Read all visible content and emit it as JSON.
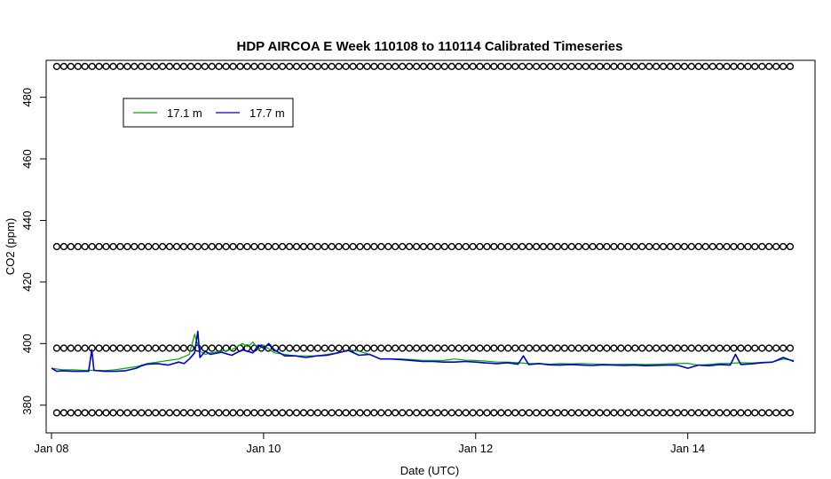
{
  "chart_data": {
    "type": "line",
    "title": "HDP AIRCOA E  Week 110108 to 110114  Calibrated Timeseries",
    "xlabel": "Date (UTC)",
    "ylabel": "CO2 (ppm)",
    "xlim": [
      -0.05,
      7.2
    ],
    "ylim": [
      371,
      492
    ],
    "x_ticks": [
      {
        "value": 0,
        "label": "Jan 08"
      },
      {
        "value": 2,
        "label": "Jan 10"
      },
      {
        "value": 4,
        "label": "Jan 12"
      },
      {
        "value": 6,
        "label": "Jan 14"
      }
    ],
    "y_ticks": [
      380,
      400,
      420,
      440,
      460,
      480
    ],
    "legend": {
      "placement": "top-left",
      "entries": [
        {
          "label": "17.1 m",
          "color": "#00aa00"
        },
        {
          "label": "17.7 m",
          "color": "#0000cc"
        }
      ]
    },
    "calibration_levels": [
      377.5,
      398.5,
      431.5,
      490
    ],
    "calibration_x_range": [
      0.05,
      7.0
    ],
    "series": [
      {
        "name": "17.1 m",
        "color": "#00aa00",
        "x": [
          0.0,
          0.1,
          0.2,
          0.3,
          0.4,
          0.5,
          0.6,
          0.7,
          0.8,
          0.9,
          1.0,
          1.1,
          1.2,
          1.3,
          1.35,
          1.4,
          1.45,
          1.5,
          1.6,
          1.7,
          1.8,
          1.85,
          1.9,
          1.95,
          2.0,
          2.1,
          2.2,
          2.3,
          2.4,
          2.5,
          2.6,
          2.7,
          2.8,
          2.9,
          3.0,
          3.1,
          3.2,
          3.3,
          3.4,
          3.5,
          3.6,
          3.7,
          3.8,
          3.9,
          4.0,
          4.1,
          4.2,
          4.3,
          4.4,
          4.5,
          4.6,
          4.7,
          4.8,
          4.9,
          5.0,
          5.1,
          5.2,
          5.3,
          5.4,
          5.5,
          5.6,
          5.7,
          5.8,
          5.9,
          6.0,
          6.1,
          6.2,
          6.3,
          6.4,
          6.5,
          6.6,
          6.7,
          6.8,
          6.9,
          7.0
        ],
        "values": [
          392,
          391.5,
          391.5,
          391.3,
          391.3,
          391.2,
          391.5,
          392,
          392.5,
          393.5,
          394,
          394.5,
          395,
          396.5,
          403,
          397.5,
          396.5,
          397,
          397.5,
          398,
          400,
          399,
          400.5,
          398,
          399.5,
          397,
          396.5,
          396,
          396,
          396,
          396.5,
          397,
          398,
          397.5,
          396.5,
          395,
          395,
          395,
          394.8,
          394.5,
          394.5,
          394.5,
          395,
          394.6,
          394.5,
          394.3,
          394,
          394,
          393.8,
          393.5,
          393.5,
          393.3,
          393.5,
          393.4,
          393.5,
          393.4,
          393.3,
          393.2,
          393.3,
          393.3,
          393.2,
          393.3,
          393.4,
          393.5,
          393.6,
          393,
          393.2,
          393.5,
          393.6,
          393.8,
          393.7,
          393.9,
          394,
          395,
          394.5
        ]
      },
      {
        "name": "17.7 m",
        "color": "#0000cc",
        "x": [
          0.0,
          0.05,
          0.1,
          0.2,
          0.3,
          0.35,
          0.38,
          0.4,
          0.5,
          0.6,
          0.7,
          0.8,
          0.85,
          0.9,
          1.0,
          1.1,
          1.2,
          1.25,
          1.3,
          1.35,
          1.38,
          1.4,
          1.45,
          1.5,
          1.6,
          1.7,
          1.8,
          1.9,
          1.95,
          2.0,
          2.05,
          2.1,
          2.2,
          2.3,
          2.4,
          2.5,
          2.6,
          2.7,
          2.8,
          2.9,
          3.0,
          3.1,
          3.2,
          3.3,
          3.4,
          3.5,
          3.6,
          3.7,
          3.8,
          3.9,
          4.0,
          4.1,
          4.2,
          4.3,
          4.4,
          4.45,
          4.5,
          4.6,
          4.7,
          4.8,
          4.9,
          5.0,
          5.1,
          5.2,
          5.3,
          5.4,
          5.5,
          5.6,
          5.7,
          5.8,
          5.9,
          6.0,
          6.1,
          6.2,
          6.3,
          6.4,
          6.45,
          6.5,
          6.6,
          6.7,
          6.8,
          6.9,
          7.0
        ],
        "values": [
          392,
          391,
          391.2,
          391,
          391,
          391,
          398,
          391.3,
          391,
          391,
          391.2,
          392,
          392.8,
          393.3,
          393.5,
          393,
          394,
          393.5,
          395,
          397,
          404,
          395.5,
          397.5,
          396.5,
          397.2,
          396.2,
          398,
          397,
          399.5,
          398.5,
          400,
          398,
          396,
          396,
          395.5,
          396,
          396.2,
          397,
          397.8,
          396.2,
          396.5,
          395,
          395,
          394.8,
          394.5,
          394.2,
          394.2,
          394,
          394,
          394.2,
          394,
          393.7,
          393.5,
          393.8,
          393.3,
          396,
          393.2,
          393.5,
          393.1,
          393,
          393.2,
          393,
          392.9,
          393.1,
          393,
          392.9,
          393,
          392.8,
          392.9,
          393,
          393,
          392,
          393,
          392.8,
          393.2,
          393,
          396.5,
          393.2,
          393.4,
          393.8,
          394,
          395.5,
          394.2
        ]
      }
    ]
  }
}
